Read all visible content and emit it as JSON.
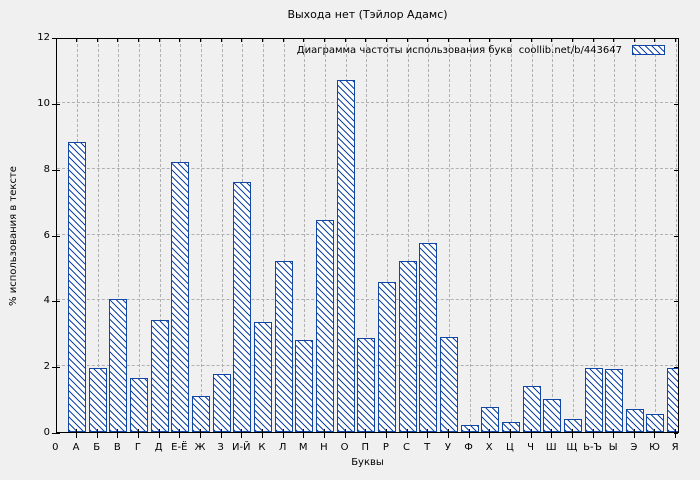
{
  "title": "Выхода нет (Тэйлор Адамс)",
  "legend": {
    "label": "Диаграмма частоты использования букв  coollib.net/b/443647"
  },
  "axes": {
    "ylabel": "% использования в тексте",
    "xlabel": "Буквы",
    "x_origin_label": "0"
  },
  "colors": {
    "background": "#f0f0f0",
    "bar_fill": "#ffffff",
    "bar_border": "#1246a5",
    "grid": "#b0b0b0",
    "axis": "#000000",
    "text": "#000000"
  },
  "chart_data": {
    "type": "bar",
    "title": "Выхода нет (Тэйлор Адамс)",
    "legend_label": "Диаграмма частоты использования букв  coollib.net/b/443647",
    "legend_position": "top-right",
    "xlabel": "Буквы",
    "ylabel": "% использования в тексте",
    "ylim": [
      0,
      12
    ],
    "yticks": [
      0,
      2,
      4,
      6,
      8,
      10,
      12
    ],
    "x_origin_label": "0",
    "grid": true,
    "hatch": "backslash-diagonal",
    "categories": [
      "А",
      "Б",
      "В",
      "Г",
      "Д",
      "Е-Ё",
      "Ж",
      "З",
      "И-Й",
      "К",
      "Л",
      "М",
      "Н",
      "О",
      "П",
      "Р",
      "С",
      "Т",
      "У",
      "Ф",
      "Х",
      "Ц",
      "Ч",
      "Ш",
      "Щ",
      "Ь-Ъ",
      "Ы",
      "Э",
      "Ю",
      "Я"
    ],
    "values": [
      8.8,
      1.95,
      4.05,
      1.65,
      3.4,
      8.2,
      1.1,
      1.75,
      7.6,
      3.35,
      5.2,
      2.8,
      6.45,
      10.7,
      2.85,
      4.55,
      5.2,
      5.75,
      2.9,
      0.2,
      0.75,
      0.3,
      1.4,
      1.0,
      0.4,
      1.95,
      1.9,
      0.7,
      0.55,
      1.95
    ]
  }
}
